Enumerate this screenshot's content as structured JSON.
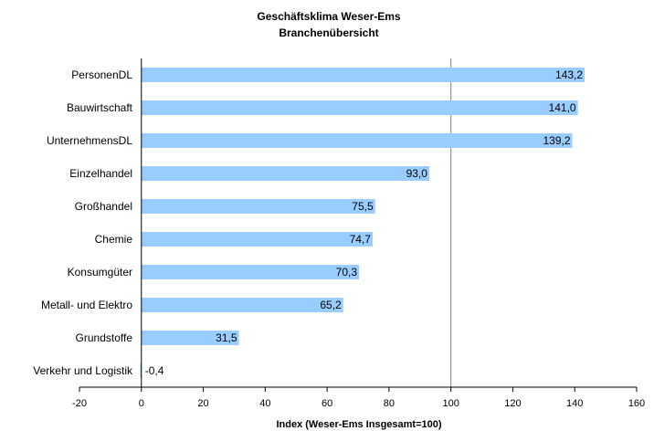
{
  "chart_data": {
    "type": "bar",
    "orientation": "horizontal",
    "title": "Geschäftsklima Weser-Ems",
    "subtitle": "Branchenübersicht",
    "xlabel": "Index (Weser-Ems Insgesamt=100)",
    "ylabel": "",
    "xlim": [
      -20,
      160
    ],
    "xticks": [
      -20,
      0,
      20,
      40,
      60,
      80,
      100,
      120,
      140,
      160
    ],
    "reference_line": 100,
    "grid": false,
    "legend": "none",
    "bar_color": "#99ccff",
    "categories": [
      "PersonenDL",
      "Bauwirtschaft",
      "UnternehmensDL",
      "Einzelhandel",
      "Großhandel",
      "Chemie",
      "Konsumgüter",
      "Metall- und Elektro",
      "Grundstoffe",
      "Verkehr und Logistik"
    ],
    "values": [
      143.2,
      141.0,
      139.2,
      93.0,
      75.5,
      74.7,
      70.3,
      65.2,
      31.5,
      -0.4
    ],
    "value_labels": [
      "143,2",
      "141,0",
      "139,2",
      "93,0",
      "75,5",
      "74,7",
      "70,3",
      "65,2",
      "31,5",
      "-0,4"
    ]
  }
}
